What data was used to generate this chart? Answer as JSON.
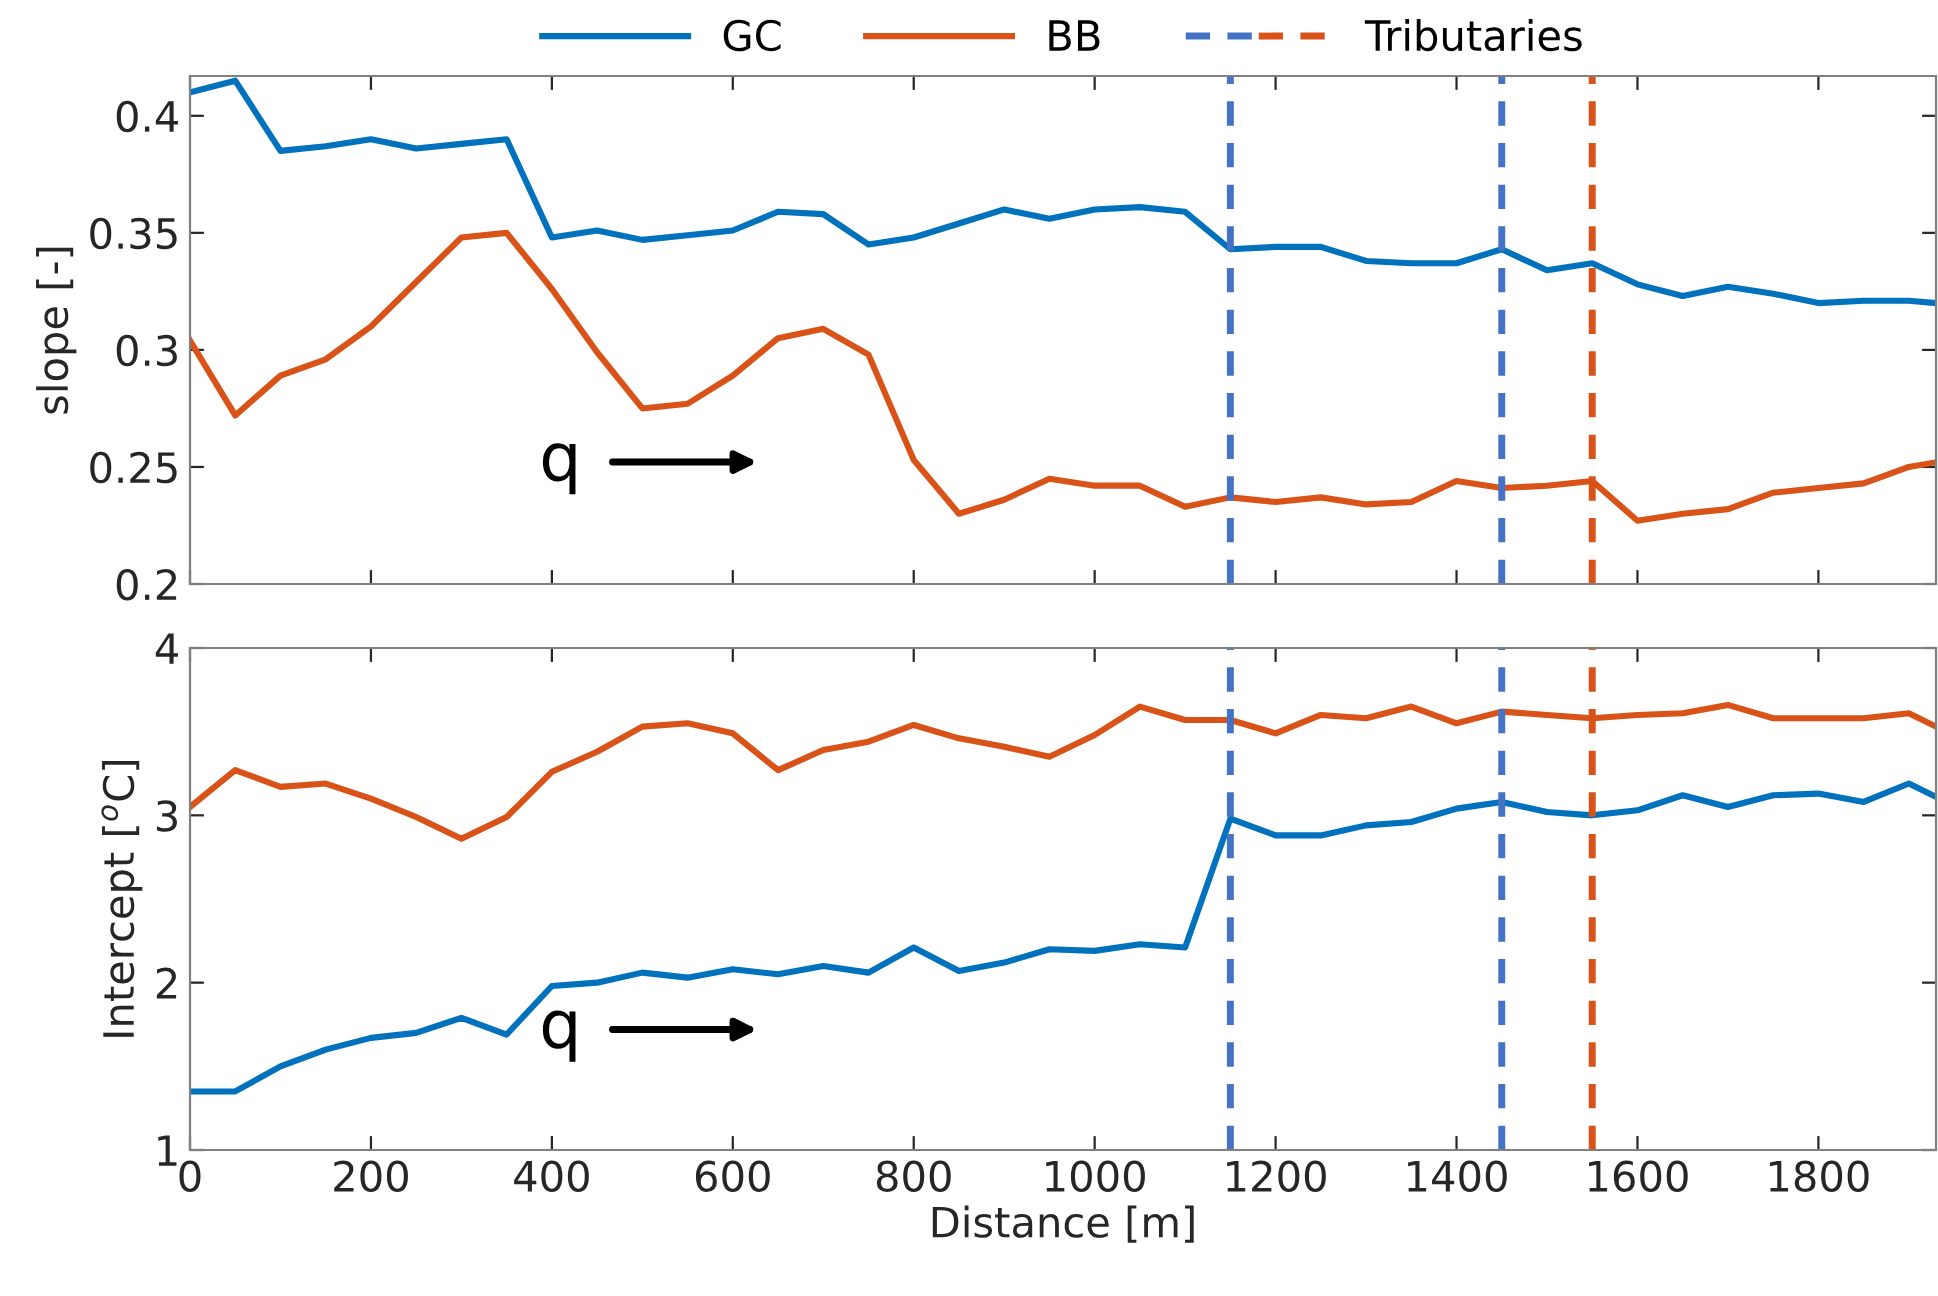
{
  "chart_data": [
    {
      "type": "line",
      "ylabel": "slope [-]",
      "xlim": [
        0,
        1930
      ],
      "xticks": [
        0,
        200,
        400,
        600,
        800,
        1000,
        1200,
        1400,
        1600,
        1800
      ],
      "ylim": [
        0.2,
        0.417
      ],
      "yticks": [
        0.2,
        0.25,
        0.3,
        0.35,
        0.4
      ],
      "tick_labels": "y",
      "legend": "top",
      "grid": false,
      "x": [
        0,
        50,
        100,
        150,
        200,
        250,
        300,
        350,
        400,
        450,
        500,
        550,
        600,
        650,
        700,
        750,
        800,
        850,
        900,
        950,
        1000,
        1050,
        1100,
        1150,
        1200,
        1250,
        1300,
        1350,
        1400,
        1450,
        1500,
        1550,
        1600,
        1650,
        1700,
        1750,
        1800,
        1850,
        1900,
        1930
      ],
      "series": [
        {
          "name": "GC",
          "color": "#0072bd",
          "values": [
            0.41,
            0.415,
            0.385,
            0.387,
            0.39,
            0.386,
            0.388,
            0.39,
            0.348,
            0.351,
            0.347,
            0.349,
            0.351,
            0.359,
            0.358,
            0.345,
            0.348,
            0.354,
            0.36,
            0.356,
            0.36,
            0.361,
            0.359,
            0.343,
            0.344,
            0.344,
            0.338,
            0.337,
            0.337,
            0.343,
            0.334,
            0.337,
            0.328,
            0.323,
            0.327,
            0.324,
            0.32,
            0.321,
            0.321,
            0.32
          ]
        },
        {
          "name": "BB",
          "color": "#d95319",
          "values": [
            0.304,
            0.272,
            0.289,
            0.296,
            0.31,
            0.329,
            0.348,
            0.35,
            0.326,
            0.299,
            0.275,
            0.277,
            0.289,
            0.305,
            0.309,
            0.298,
            0.253,
            0.23,
            0.236,
            0.245,
            0.242,
            0.242,
            0.233,
            0.237,
            0.235,
            0.237,
            0.234,
            0.235,
            0.244,
            0.241,
            0.242,
            0.244,
            0.227,
            0.23,
            0.232,
            0.239,
            0.241,
            0.243,
            0.25,
            0.252
          ]
        }
      ],
      "ref_lines": [
        {
          "axis": "x",
          "value": 1150,
          "color": "#4472c4",
          "line_style": "dashed"
        },
        {
          "axis": "x",
          "value": 1450,
          "color": "#4472c4",
          "line_style": "dashed"
        },
        {
          "axis": "x",
          "value": 1550,
          "label": "Tributaries",
          "color": "#d95319",
          "line_style": "dashed"
        }
      ],
      "annotations": [
        "q"
      ]
    },
    {
      "type": "line",
      "xlabel": "Distance [m]",
      "ylabel": "Intercept [$^{o}$C]",
      "xlim": [
        0,
        1930
      ],
      "xticks": [
        0,
        200,
        400,
        600,
        800,
        1000,
        1200,
        1400,
        1600,
        1800
      ],
      "ylim": [
        1,
        4
      ],
      "yticks": [
        1,
        2,
        3,
        4
      ],
      "grid": false,
      "x": [
        0,
        50,
        100,
        150,
        200,
        250,
        300,
        350,
        400,
        450,
        500,
        550,
        600,
        650,
        700,
        750,
        800,
        850,
        900,
        950,
        1000,
        1050,
        1100,
        1150,
        1200,
        1250,
        1300,
        1350,
        1400,
        1450,
        1500,
        1550,
        1600,
        1650,
        1700,
        1750,
        1800,
        1850,
        1900,
        1930
      ],
      "series": [
        {
          "color": "#0072bd",
          "values": [
            1.35,
            1.35,
            1.5,
            1.6,
            1.67,
            1.7,
            1.79,
            1.69,
            1.98,
            2.0,
            2.06,
            2.03,
            2.08,
            2.05,
            2.1,
            2.06,
            2.21,
            2.07,
            2.12,
            2.2,
            2.19,
            2.23,
            2.21,
            2.98,
            2.88,
            2.88,
            2.94,
            2.96,
            3.04,
            3.08,
            3.02,
            3.0,
            3.03,
            3.12,
            3.05,
            3.12,
            3.13,
            3.08,
            3.19,
            3.11
          ]
        },
        {
          "color": "#d95319",
          "values": [
            3.05,
            3.27,
            3.17,
            3.19,
            3.1,
            2.99,
            2.86,
            2.99,
            3.26,
            3.38,
            3.53,
            3.55,
            3.49,
            3.27,
            3.39,
            3.44,
            3.54,
            3.46,
            3.41,
            3.35,
            3.48,
            3.65,
            3.57,
            3.57,
            3.49,
            3.6,
            3.58,
            3.65,
            3.55,
            3.62,
            3.6,
            3.58,
            3.6,
            3.61,
            3.66,
            3.58,
            3.58,
            3.58,
            3.61,
            3.53
          ]
        }
      ],
      "ref_lines": [
        {
          "axis": "x",
          "value": 1150,
          "color": "#4472c4",
          "line_style": "dashed"
        },
        {
          "axis": "x",
          "value": 1450,
          "color": "#4472c4",
          "line_style": "dashed"
        },
        {
          "axis": "x",
          "value": 1550,
          "color": "#d95319",
          "line_style": "dashed"
        }
      ],
      "annotations": [
        "q"
      ]
    }
  ]
}
